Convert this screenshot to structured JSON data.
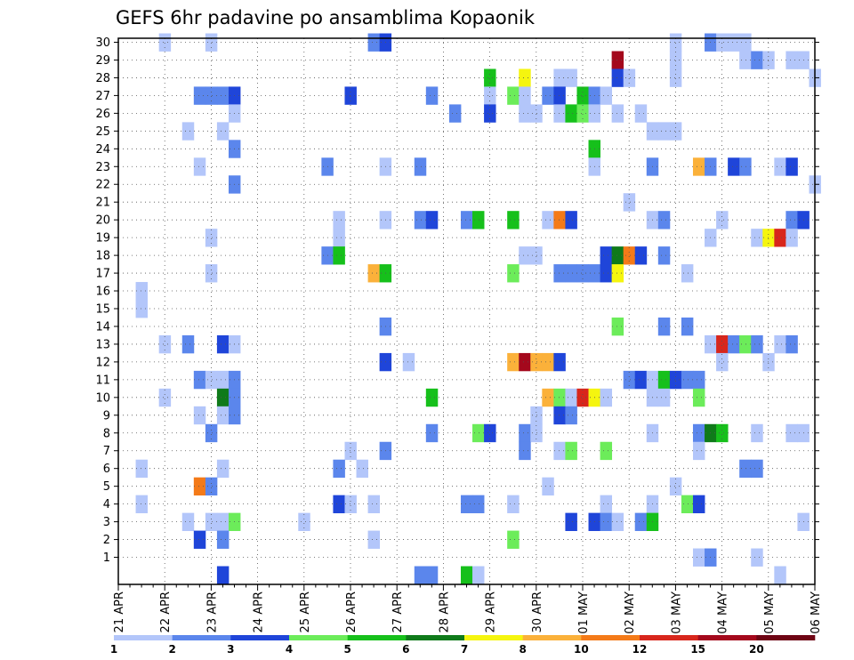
{
  "chart_data": {
    "type": "heatmap",
    "title": "GEFS 6hr padavine po ansamblima Kopaonik",
    "xlabel": "",
    "ylabel": "",
    "x_time_steps": 61,
    "x_ticks": [
      {
        "step": 0,
        "label": "21 APR"
      },
      {
        "step": 4,
        "label": "22 APR"
      },
      {
        "step": 8,
        "label": "23 APR"
      },
      {
        "step": 12,
        "label": "24 APR"
      },
      {
        "step": 16,
        "label": "25 APR"
      },
      {
        "step": 20,
        "label": "26 APR"
      },
      {
        "step": 24,
        "label": "27 APR"
      },
      {
        "step": 28,
        "label": "28 APR"
      },
      {
        "step": 32,
        "label": "29 APR"
      },
      {
        "step": 36,
        "label": "30 APR"
      },
      {
        "step": 40,
        "label": "01 MAY"
      },
      {
        "step": 44,
        "label": "02 MAY"
      },
      {
        "step": 48,
        "label": "03 MAY"
      },
      {
        "step": 52,
        "label": "04 MAY"
      },
      {
        "step": 56,
        "label": "05 MAY"
      },
      {
        "step": 60,
        "label": "06 MAY"
      }
    ],
    "y_ticks": [
      1,
      2,
      3,
      4,
      5,
      6,
      7,
      8,
      9,
      10,
      11,
      12,
      13,
      14,
      15,
      16,
      17,
      18,
      19,
      20,
      21,
      22,
      23,
      24,
      25,
      26,
      27,
      28,
      29,
      30
    ],
    "ylim": [
      0,
      30
    ],
    "grid": true,
    "colorbar": {
      "labels": [
        "1",
        "2",
        "3",
        "4",
        "5",
        "6",
        "7",
        "8",
        "10",
        "12",
        "15",
        "20"
      ],
      "colors": [
        "#b3c6fa",
        "#5b86ec",
        "#1f45d9",
        "#6cec5a",
        "#16c01b",
        "#0f7a1a",
        "#f5f50f",
        "#fbb13a",
        "#f47a18",
        "#d8261c",
        "#a4081c",
        "#6e0414"
      ]
    },
    "cells": [
      [
        4,
        30,
        0
      ],
      [
        8,
        30,
        0
      ],
      [
        22,
        30,
        1
      ],
      [
        23,
        30,
        2
      ],
      [
        51,
        30,
        1
      ],
      [
        52,
        30,
        0
      ],
      [
        53,
        30,
        0
      ],
      [
        54,
        30,
        0
      ],
      [
        48,
        30,
        0
      ],
      [
        43,
        29,
        10
      ],
      [
        48,
        29,
        0
      ],
      [
        54,
        29,
        0
      ],
      [
        55,
        29,
        1
      ],
      [
        56,
        29,
        0
      ],
      [
        58,
        29,
        0
      ],
      [
        59,
        29,
        0
      ],
      [
        32,
        28,
        4
      ],
      [
        35,
        28,
        6
      ],
      [
        38,
        28,
        0
      ],
      [
        39,
        28,
        0
      ],
      [
        43,
        28,
        2
      ],
      [
        44,
        28,
        0
      ],
      [
        48,
        28,
        0
      ],
      [
        60,
        28,
        0
      ],
      [
        7,
        27,
        1
      ],
      [
        8,
        27,
        1
      ],
      [
        9,
        27,
        1
      ],
      [
        10,
        27,
        2
      ],
      [
        20,
        27,
        2
      ],
      [
        27,
        27,
        1
      ],
      [
        32,
        27,
        0
      ],
      [
        34,
        27,
        3
      ],
      [
        35,
        27,
        0
      ],
      [
        37,
        27,
        1
      ],
      [
        38,
        27,
        2
      ],
      [
        40,
        27,
        4
      ],
      [
        41,
        27,
        1
      ],
      [
        42,
        27,
        0
      ],
      [
        10,
        26,
        0
      ],
      [
        29,
        26,
        1
      ],
      [
        32,
        26,
        2
      ],
      [
        35,
        26,
        0
      ],
      [
        36,
        26,
        0
      ],
      [
        38,
        26,
        0
      ],
      [
        39,
        26,
        4
      ],
      [
        40,
        26,
        3
      ],
      [
        41,
        26,
        0
      ],
      [
        43,
        26,
        0
      ],
      [
        45,
        26,
        0
      ],
      [
        6,
        25,
        0
      ],
      [
        9,
        25,
        0
      ],
      [
        46,
        25,
        0
      ],
      [
        47,
        25,
        0
      ],
      [
        48,
        25,
        0
      ],
      [
        10,
        24,
        1
      ],
      [
        41,
        24,
        4
      ],
      [
        7,
        23,
        0
      ],
      [
        18,
        23,
        1
      ],
      [
        23,
        23,
        0
      ],
      [
        26,
        23,
        1
      ],
      [
        41,
        23,
        0
      ],
      [
        46,
        23,
        1
      ],
      [
        50,
        23,
        7
      ],
      [
        51,
        23,
        1
      ],
      [
        53,
        23,
        2
      ],
      [
        54,
        23,
        1
      ],
      [
        57,
        23,
        0
      ],
      [
        58,
        23,
        2
      ],
      [
        10,
        22,
        1
      ],
      [
        60,
        22,
        0
      ],
      [
        44,
        21,
        0
      ],
      [
        19,
        20,
        0
      ],
      [
        23,
        20,
        0
      ],
      [
        26,
        20,
        1
      ],
      [
        27,
        20,
        2
      ],
      [
        30,
        20,
        1
      ],
      [
        31,
        20,
        4
      ],
      [
        34,
        20,
        4
      ],
      [
        37,
        20,
        0
      ],
      [
        38,
        20,
        8
      ],
      [
        39,
        20,
        2
      ],
      [
        46,
        20,
        0
      ],
      [
        47,
        20,
        1
      ],
      [
        52,
        20,
        0
      ],
      [
        58,
        20,
        1
      ],
      [
        59,
        20,
        2
      ],
      [
        8,
        19,
        0
      ],
      [
        19,
        19,
        0
      ],
      [
        51,
        19,
        0
      ],
      [
        55,
        19,
        0
      ],
      [
        56,
        19,
        6
      ],
      [
        57,
        19,
        9
      ],
      [
        58,
        19,
        0
      ],
      [
        18,
        18,
        1
      ],
      [
        19,
        18,
        4
      ],
      [
        35,
        18,
        0
      ],
      [
        36,
        18,
        0
      ],
      [
        42,
        18,
        2
      ],
      [
        43,
        18,
        5
      ],
      [
        44,
        18,
        8
      ],
      [
        45,
        18,
        2
      ],
      [
        47,
        18,
        1
      ],
      [
        8,
        17,
        0
      ],
      [
        22,
        17,
        7
      ],
      [
        23,
        17,
        4
      ],
      [
        34,
        17,
        3
      ],
      [
        38,
        17,
        1
      ],
      [
        39,
        17,
        1
      ],
      [
        40,
        17,
        1
      ],
      [
        41,
        17,
        1
      ],
      [
        42,
        17,
        2
      ],
      [
        43,
        17,
        6
      ],
      [
        49,
        17,
        0
      ],
      [
        2,
        16,
        0
      ],
      [
        2,
        15,
        0
      ],
      [
        23,
        14,
        1
      ],
      [
        43,
        14,
        3
      ],
      [
        47,
        14,
        1
      ],
      [
        49,
        14,
        1
      ],
      [
        4,
        13,
        0
      ],
      [
        6,
        13,
        1
      ],
      [
        9,
        13,
        2
      ],
      [
        10,
        13,
        0
      ],
      [
        51,
        13,
        0
      ],
      [
        52,
        13,
        9
      ],
      [
        53,
        13,
        1
      ],
      [
        54,
        13,
        3
      ],
      [
        55,
        13,
        1
      ],
      [
        57,
        13,
        0
      ],
      [
        58,
        13,
        1
      ],
      [
        23,
        12,
        2
      ],
      [
        25,
        12,
        0
      ],
      [
        34,
        12,
        7
      ],
      [
        35,
        12,
        10
      ],
      [
        36,
        12,
        7
      ],
      [
        37,
        12,
        7
      ],
      [
        38,
        12,
        2
      ],
      [
        52,
        12,
        0
      ],
      [
        56,
        12,
        0
      ],
      [
        7,
        11,
        1
      ],
      [
        8,
        11,
        0
      ],
      [
        9,
        11,
        0
      ],
      [
        10,
        11,
        1
      ],
      [
        44,
        11,
        1
      ],
      [
        45,
        11,
        2
      ],
      [
        46,
        11,
        0
      ],
      [
        47,
        11,
        4
      ],
      [
        48,
        11,
        2
      ],
      [
        49,
        11,
        1
      ],
      [
        50,
        11,
        1
      ],
      [
        4,
        10,
        0
      ],
      [
        9,
        10,
        5
      ],
      [
        10,
        10,
        1
      ],
      [
        27,
        10,
        4
      ],
      [
        37,
        10,
        7
      ],
      [
        38,
        10,
        3
      ],
      [
        39,
        10,
        0
      ],
      [
        40,
        10,
        9
      ],
      [
        41,
        10,
        6
      ],
      [
        42,
        10,
        0
      ],
      [
        46,
        10,
        0
      ],
      [
        47,
        10,
        0
      ],
      [
        50,
        10,
        3
      ],
      [
        7,
        9,
        0
      ],
      [
        9,
        9,
        0
      ],
      [
        10,
        9,
        1
      ],
      [
        36,
        9,
        0
      ],
      [
        38,
        9,
        2
      ],
      [
        39,
        9,
        1
      ],
      [
        8,
        8,
        1
      ],
      [
        27,
        8,
        1
      ],
      [
        31,
        8,
        3
      ],
      [
        32,
        8,
        2
      ],
      [
        35,
        8,
        1
      ],
      [
        36,
        8,
        0
      ],
      [
        46,
        8,
        0
      ],
      [
        50,
        8,
        1
      ],
      [
        51,
        8,
        5
      ],
      [
        52,
        8,
        4
      ],
      [
        55,
        8,
        0
      ],
      [
        58,
        8,
        0
      ],
      [
        59,
        8,
        0
      ],
      [
        20,
        7,
        0
      ],
      [
        23,
        7,
        1
      ],
      [
        35,
        7,
        1
      ],
      [
        38,
        7,
        0
      ],
      [
        39,
        7,
        3
      ],
      [
        42,
        7,
        3
      ],
      [
        50,
        7,
        0
      ],
      [
        2,
        6,
        0
      ],
      [
        9,
        6,
        0
      ],
      [
        19,
        6,
        1
      ],
      [
        21,
        6,
        0
      ],
      [
        54,
        6,
        1
      ],
      [
        55,
        6,
        1
      ],
      [
        7,
        5,
        8
      ],
      [
        8,
        5,
        1
      ],
      [
        37,
        5,
        0
      ],
      [
        48,
        5,
        0
      ],
      [
        2,
        4,
        0
      ],
      [
        19,
        4,
        2
      ],
      [
        20,
        4,
        0
      ],
      [
        22,
        4,
        0
      ],
      [
        30,
        4,
        1
      ],
      [
        31,
        4,
        1
      ],
      [
        34,
        4,
        0
      ],
      [
        42,
        4,
        0
      ],
      [
        46,
        4,
        0
      ],
      [
        49,
        4,
        3
      ],
      [
        50,
        4,
        2
      ],
      [
        6,
        3,
        0
      ],
      [
        8,
        3,
        0
      ],
      [
        9,
        3,
        0
      ],
      [
        10,
        3,
        3
      ],
      [
        16,
        3,
        0
      ],
      [
        39,
        3,
        2
      ],
      [
        41,
        3,
        2
      ],
      [
        42,
        3,
        1
      ],
      [
        43,
        3,
        0
      ],
      [
        45,
        3,
        1
      ],
      [
        46,
        3,
        4
      ],
      [
        59,
        3,
        0
      ],
      [
        7,
        2,
        2
      ],
      [
        9,
        2,
        1
      ],
      [
        22,
        2,
        0
      ],
      [
        34,
        2,
        3
      ],
      [
        50,
        1,
        0
      ],
      [
        51,
        1,
        1
      ],
      [
        55,
        1,
        0
      ],
      [
        9,
        0,
        2
      ],
      [
        26,
        0,
        1
      ],
      [
        27,
        0,
        1
      ],
      [
        30,
        0,
        4
      ],
      [
        31,
        0,
        0
      ],
      [
        57,
        0,
        0
      ]
    ]
  }
}
